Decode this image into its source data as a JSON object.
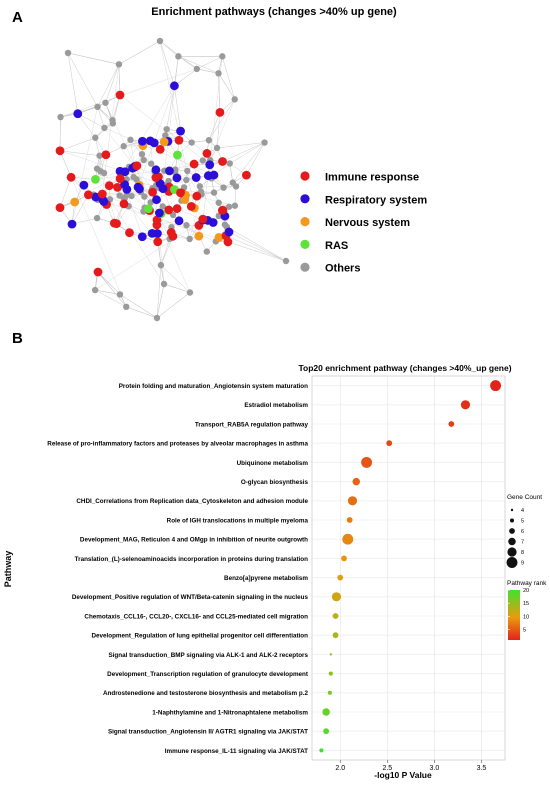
{
  "panel_a": {
    "label": "A",
    "title": "Enrichment pathways (changes >40% up gene)",
    "legend": [
      {
        "label": "Immune response",
        "color": "#e41a1c"
      },
      {
        "label": "Respiratory system",
        "color": "#2b0fd8"
      },
      {
        "label": "Nervous system",
        "color": "#f39a1c"
      },
      {
        "label": "RAS",
        "color": "#5ee33a"
      },
      {
        "label": "Others",
        "color": "#9a9a9a"
      }
    ]
  },
  "panel_b": {
    "label": "B"
  },
  "chart_data": {
    "type": "scatter",
    "title": "Top20 enrichment pathway (changes >40%_up gene)",
    "xlabel": "-log10 P Value",
    "ylabel": "Pathway",
    "xlim": [
      1.7,
      3.75
    ],
    "xticks": [
      "2.0",
      "2.5",
      "3.0",
      "3.5"
    ],
    "xtick_values": [
      2.0,
      2.5,
      3.0,
      3.5
    ],
    "grid": true,
    "categories": [
      "Protein folding and maturation_Angiotensin system maturation",
      "Estradiol metabolism",
      "Transport_RAB5A regulation pathway",
      "Release of pro-inflammatory factors and proteases by alveolar macrophages in asthma",
      "Ubiquinone metabolism",
      "O-glycan biosynthesis",
      "CHDI_Correlations from Replication data_Cytoskeleton and adhesion module",
      "Role of IGH translocations in multiple myeloma",
      "Development_MAG, Reticulon 4 and OMgp in inhibition of neurite outgrowth",
      "Translation_(L)-selenoaminoacids incorporation in proteins during translation",
      "Benzo[a]pyrene metabolism",
      "Development_Positive regulation of WNT/Beta-catenin signaling in the nucleus",
      "Chemotaxis_CCL16-, CCL20-, CXCL16- and CCL25-mediated cell migration",
      "Development_Regulation of lung epithelial progenitor cell differentiation",
      "Signal transduction_BMP signaling via ALK-1 and ALK-2 receptors",
      "Development_Transcription regulation of granulocyte development",
      "Androstenedione and testosterone biosynthesis and metabolism p.2",
      "1-Naphthylamine and 1-Nitronaphtalene metabolism",
      "Signal transduction_Angiotensin II/ AGTR1 signaling via JAK/STAT",
      "Immune response_IL-11 signaling via JAK/STAT"
    ],
    "x": [
      3.65,
      3.33,
      3.18,
      2.52,
      2.28,
      2.17,
      2.13,
      2.1,
      2.08,
      2.04,
      2.0,
      1.96,
      1.95,
      1.95,
      1.9,
      1.9,
      1.89,
      1.85,
      1.85,
      1.8
    ],
    "gene_count": [
      9,
      8,
      6,
      6,
      9,
      7,
      8,
      6,
      9,
      6,
      6,
      8,
      6,
      6,
      4,
      5,
      5,
      7,
      6,
      5
    ],
    "rank": [
      1,
      2,
      3,
      4,
      5,
      6,
      7,
      8,
      9,
      10,
      11,
      12,
      13,
      14,
      15,
      16,
      17,
      18,
      19,
      20
    ],
    "size_legend": {
      "title": "Gene Count",
      "values": [
        4,
        5,
        6,
        7,
        8,
        9
      ]
    },
    "color_legend": {
      "title": "Pathway rank",
      "ticks": [
        20,
        15,
        10,
        5
      ],
      "low_color": "#e2231a",
      "mid_color": "#e99a0e",
      "high_color": "#41e12d"
    }
  }
}
